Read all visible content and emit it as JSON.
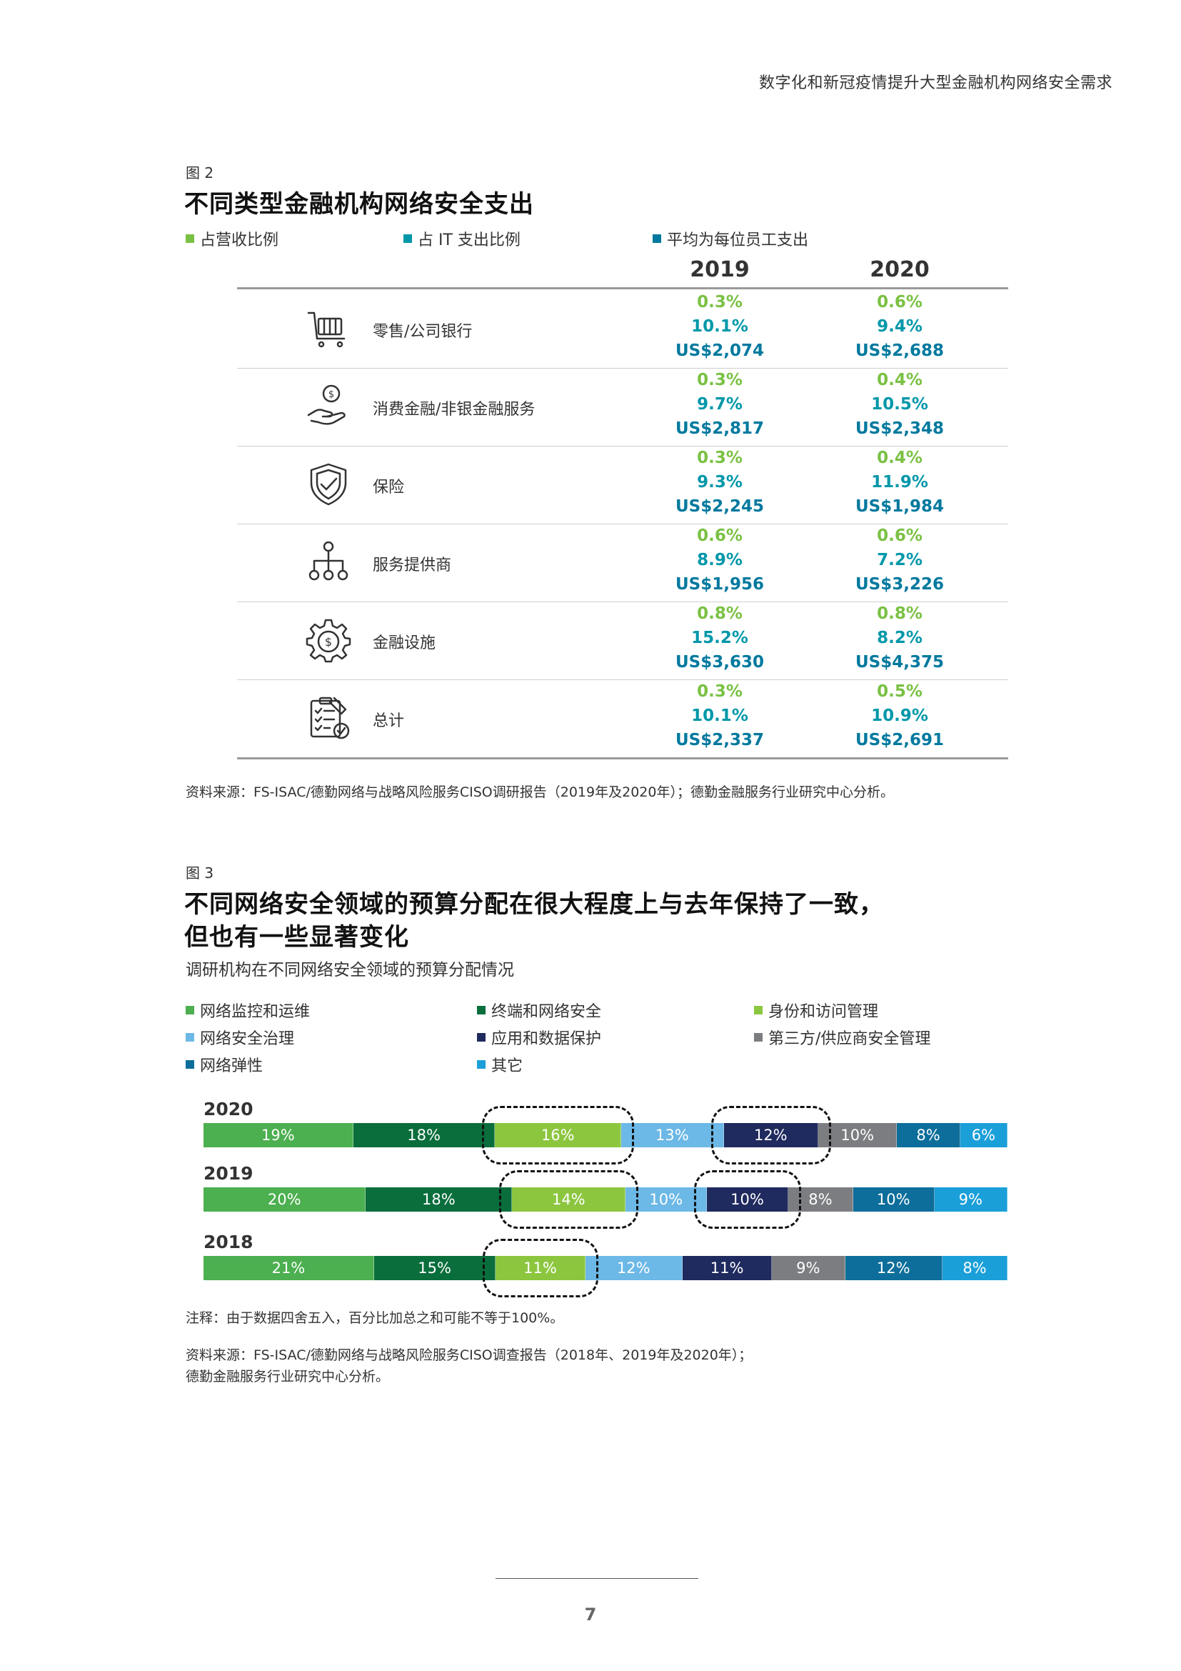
{
  "header": {
    "running_title": "数字化和新冠疫情提升大型金融机构网络安全需求"
  },
  "figure2": {
    "label": "图 2",
    "title": "不同类型金融机构网络安全支出",
    "legend": [
      {
        "label": "占营收比例",
        "color": "#7ac143"
      },
      {
        "label": "占 IT 支出比例",
        "color": "#0097a9"
      },
      {
        "label": "平均为每位员工支出",
        "color": "#00799e"
      }
    ],
    "years": [
      "2019",
      "2020"
    ],
    "rows": [
      {
        "label": "零售/公司银行",
        "icon": "shopping-cart-icon",
        "y2019": [
          "0.3%",
          "10.1%",
          "US$2,074"
        ],
        "y2020": [
          "0.6%",
          "9.4%",
          "US$2,688"
        ]
      },
      {
        "label": "消费金融/非银金融服务",
        "icon": "hand-coin-icon",
        "y2019": [
          "0.3%",
          "9.7%",
          "US$2,817"
        ],
        "y2020": [
          "0.4%",
          "10.5%",
          "US$2,348"
        ]
      },
      {
        "label": "保险",
        "icon": "shield-check-icon",
        "y2019": [
          "0.3%",
          "9.3%",
          "US$2,245"
        ],
        "y2020": [
          "0.4%",
          "11.9%",
          "US$1,984"
        ]
      },
      {
        "label": "服务提供商",
        "icon": "network-icon",
        "y2019": [
          "0.6%",
          "8.9%",
          "US$1,956"
        ],
        "y2020": [
          "0.6%",
          "7.2%",
          "US$3,226"
        ]
      },
      {
        "label": "金融设施",
        "icon": "gear-dollar-icon",
        "y2019": [
          "0.8%",
          "15.2%",
          "US$3,630"
        ],
        "y2020": [
          "0.8%",
          "8.2%",
          "US$4,375"
        ]
      },
      {
        "label": "总计",
        "icon": "clipboard-check-icon",
        "y2019": [
          "0.3%",
          "10.1%",
          "US$2,337"
        ],
        "y2020": [
          "0.5%",
          "10.9%",
          "US$2,691"
        ]
      }
    ],
    "source": "资料来源：FS-ISAC/德勤网络与战略风险服务CISO调研报告（2019年及2020年）；德勤金融服务行业研究中心分析。"
  },
  "figure3": {
    "label": "图 3",
    "title_line1": "不同网络安全领域的预算分配在很大程度上与去年保持了一致，",
    "title_line2": "但也有一些显著变化",
    "subtitle": "调研机构在不同网络安全领域的预算分配情况",
    "note": "注释：由于数据四舍五入，百分比加总之和可能不等于100%。",
    "source_line1": "资料来源：FS-ISAC/德勤网络与战略风险服务CISO调查报告（2018年、2019年及2020年）；",
    "source_line2": "德勤金融服务行业研究中心分析。"
  },
  "chart_data": {
    "type": "bar",
    "orientation": "horizontal-stacked-100",
    "categories": [
      "2020",
      "2019",
      "2018"
    ],
    "series": [
      {
        "name": "网络监控和运维",
        "color": "#4caf50",
        "values": [
          19,
          20,
          21
        ]
      },
      {
        "name": "终端和网络安全",
        "color": "#0a6e3c",
        "values": [
          18,
          18,
          15
        ]
      },
      {
        "name": "身份和访问管理",
        "color": "#8cc63f",
        "values": [
          16,
          14,
          11
        ]
      },
      {
        "name": "网络安全治理",
        "color": "#6cb8e6",
        "values": [
          13,
          10,
          12
        ]
      },
      {
        "name": "应用和数据保护",
        "color": "#1f2a5e",
        "values": [
          12,
          10,
          11
        ]
      },
      {
        "name": "第三方/供应商安全管理",
        "color": "#7b7d80",
        "values": [
          10,
          8,
          9
        ]
      },
      {
        "name": "网络弹性",
        "color": "#0d6e9b",
        "values": [
          8,
          10,
          12
        ]
      },
      {
        "name": "其它",
        "color": "#1a9fd9",
        "values": [
          6,
          9,
          8
        ]
      }
    ],
    "highlighted": [
      {
        "category": "2020",
        "series": [
          "身份和访问管理",
          "应用和数据保护"
        ]
      },
      {
        "category": "2019",
        "series": [
          "身份和访问管理",
          "应用和数据保护"
        ]
      },
      {
        "category": "2018",
        "series": [
          "身份和访问管理"
        ]
      }
    ],
    "legend_position": "top"
  },
  "page": {
    "number": "7"
  }
}
